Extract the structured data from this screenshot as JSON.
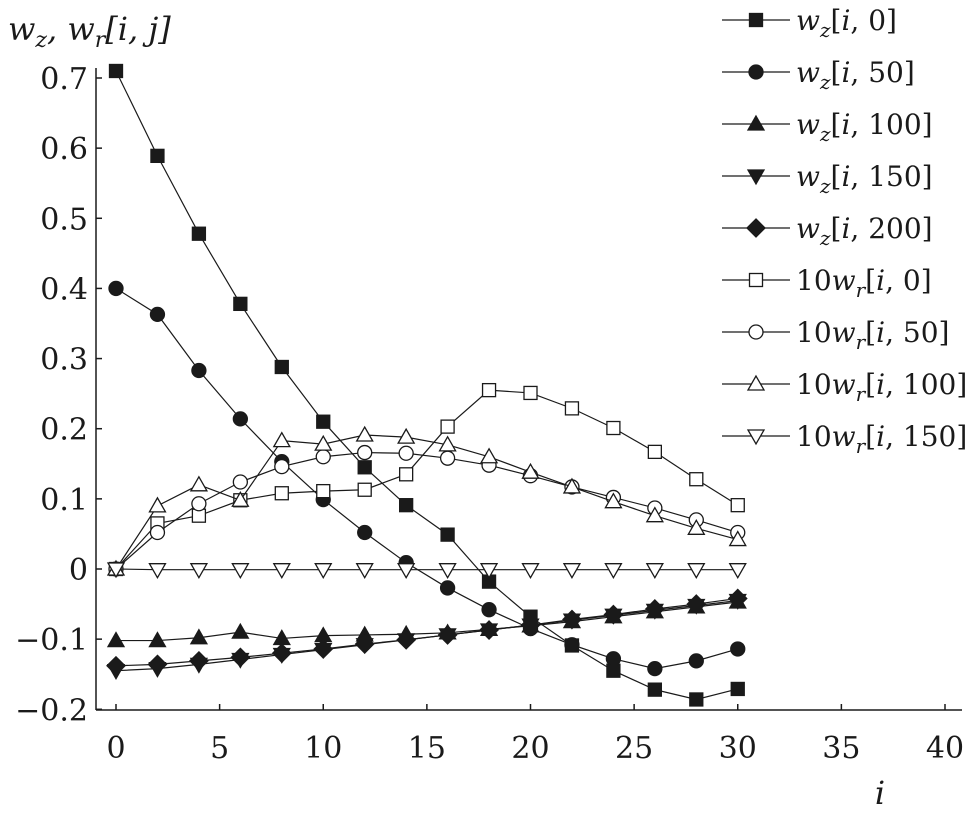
{
  "chart_data": {
    "type": "line",
    "ylabel": "w_z, w_r[i, j]",
    "xlabel": "i",
    "xlim": [
      0,
      40
    ],
    "ylim": [
      -0.2,
      0.7
    ],
    "xticks": [
      "0",
      "5",
      "10",
      "15",
      "20",
      "25",
      "30",
      "35",
      "40"
    ],
    "yticks": [
      "0.7",
      "0.6",
      "0.5",
      "0.4",
      "0.3",
      "0.2",
      "0.1",
      "0",
      "−0.1",
      "−0.2"
    ],
    "x": [
      0,
      2,
      4,
      6,
      8,
      10,
      12,
      14,
      16,
      18,
      20,
      22,
      24,
      26,
      28,
      30
    ],
    "legend_position": "right",
    "series": [
      {
        "name": "w_z[i, 0]",
        "marker": "square-filled",
        "values": [
          0.71,
          0.589,
          0.478,
          0.378,
          0.288,
          0.21,
          0.145,
          0.091,
          0.049,
          -0.018,
          -0.068,
          -0.109,
          -0.145,
          -0.172,
          -0.186,
          -0.171
        ]
      },
      {
        "name": "w_z[i, 50]",
        "marker": "circle-filled",
        "values": [
          0.4,
          0.363,
          0.283,
          0.214,
          0.153,
          0.099,
          0.052,
          0.009,
          -0.027,
          -0.058,
          -0.085,
          -0.108,
          -0.128,
          -0.142,
          -0.131,
          -0.114
        ]
      },
      {
        "name": "w_z[i, 100]",
        "marker": "triangle-up-filled",
        "values": [
          -0.102,
          -0.102,
          -0.098,
          -0.09,
          -0.099,
          -0.095,
          -0.094,
          -0.093,
          -0.091,
          -0.086,
          -0.081,
          -0.075,
          -0.068,
          -0.061,
          -0.054,
          -0.047
        ]
      },
      {
        "name": "w_z[i, 150]",
        "marker": "triangle-down-filled",
        "values": [
          -0.145,
          -0.142,
          -0.136,
          -0.129,
          -0.122,
          -0.115,
          -0.108,
          -0.101,
          -0.094,
          -0.087,
          -0.08,
          -0.073,
          -0.066,
          -0.059,
          -0.052,
          -0.045
        ]
      },
      {
        "name": "w_z[i, 200]",
        "marker": "diamond-filled",
        "values": [
          -0.138,
          -0.136,
          -0.131,
          -0.126,
          -0.12,
          -0.114,
          -0.107,
          -0.101,
          -0.094,
          -0.087,
          -0.08,
          -0.072,
          -0.065,
          -0.057,
          -0.05,
          -0.042
        ]
      },
      {
        "name": "10w_r[i, 0]",
        "marker": "square-open",
        "values": [
          0.0,
          0.065,
          0.076,
          0.098,
          0.108,
          0.111,
          0.113,
          0.135,
          0.203,
          0.255,
          0.251,
          0.229,
          0.201,
          0.167,
          0.128,
          0.091
        ]
      },
      {
        "name": "10w_r[i, 50]",
        "marker": "circle-open",
        "values": [
          0.0,
          0.052,
          0.093,
          0.124,
          0.146,
          0.16,
          0.166,
          0.165,
          0.158,
          0.148,
          0.133,
          0.117,
          0.102,
          0.087,
          0.07,
          0.052
        ]
      },
      {
        "name": "10w_r[i, 100]",
        "marker": "triangle-up-open",
        "values": [
          0.0,
          0.09,
          0.12,
          0.098,
          0.183,
          0.178,
          0.191,
          0.188,
          0.177,
          0.16,
          0.138,
          0.117,
          0.096,
          0.076,
          0.058,
          0.042
        ]
      },
      {
        "name": "10w_r[i, 150]",
        "marker": "triangle-down-open",
        "values": [
          0.0,
          -0.001,
          -0.001,
          -0.001,
          -0.001,
          -0.001,
          -0.001,
          -0.001,
          -0.001,
          -0.001,
          -0.001,
          -0.001,
          -0.001,
          -0.001,
          -0.001,
          -0.001
        ]
      }
    ]
  }
}
